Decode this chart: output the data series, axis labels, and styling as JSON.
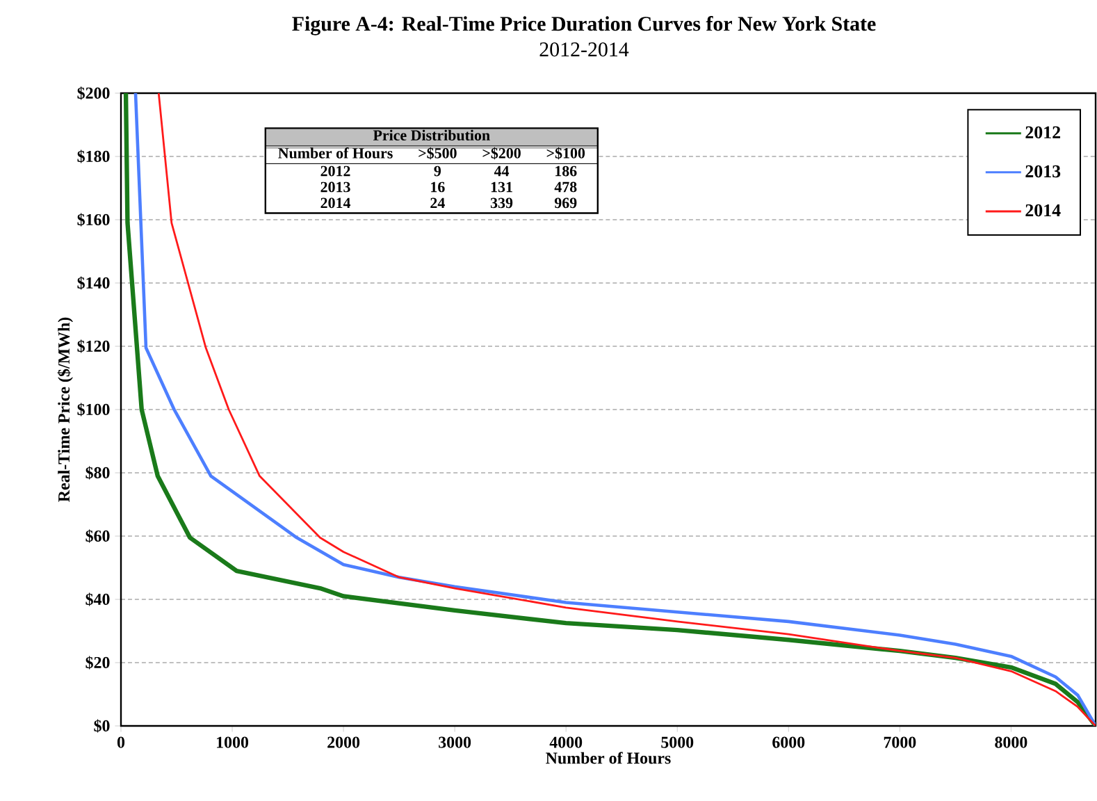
{
  "chart_data": {
    "type": "line",
    "title": "Figure A-4: Real-Time Price Duration Curves for New York State",
    "subtitle": "2012-2014",
    "xlabel": "Number of Hours",
    "ylabel": "Real-Time Price ($/MWh)",
    "xlim": [
      0,
      8760
    ],
    "ylim": [
      0,
      200
    ],
    "xticks": [
      0,
      1000,
      2000,
      3000,
      4000,
      5000,
      6000,
      7000,
      8000
    ],
    "yticks": [
      {
        "value": 0,
        "label": "$0"
      },
      {
        "value": 20,
        "label": "$20"
      },
      {
        "value": 40,
        "label": "$40"
      },
      {
        "value": 60,
        "label": "$60"
      },
      {
        "value": 80,
        "label": "$80"
      },
      {
        "value": 100,
        "label": "$100"
      },
      {
        "value": 120,
        "label": "$120"
      },
      {
        "value": 140,
        "label": "$140"
      },
      {
        "value": 160,
        "label": "$160"
      },
      {
        "value": 180,
        "label": "$180"
      },
      {
        "value": 200,
        "label": "$200"
      }
    ],
    "grid": "y",
    "legend": "top right",
    "marker": "none",
    "line_style": "solid",
    "annotations": [
      "Price Distribution",
      "Number of Hours",
      ">$500",
      ">$200",
      ">$100",
      "2012",
      "9",
      "44",
      "186",
      "2013",
      "16",
      "131",
      "478",
      "2014",
      "24",
      "339",
      "969"
    ],
    "series": [
      {
        "name": "2012",
        "color": "#1a7a1a",
        "x": [
          44,
          59,
          186,
          330,
          620,
          1040,
          1790,
          2000,
          3000,
          4000,
          5000,
          6000,
          7000,
          7500,
          8000,
          8400,
          8600,
          8760
        ],
        "values": [
          200,
          159,
          100,
          79,
          59.5,
          49,
          43.5,
          41,
          36.5,
          32.5,
          30.3,
          27.2,
          23.7,
          21.5,
          18.5,
          13.3,
          7.5,
          0
        ]
      },
      {
        "name": "2013",
        "color": "#4d7fff",
        "x": [
          131,
          225,
          478,
          808,
          1580,
          2000,
          2500,
          3000,
          4000,
          5000,
          6000,
          7000,
          7500,
          8000,
          8400,
          8600,
          8760
        ],
        "values": [
          200,
          119.5,
          100,
          79,
          59.5,
          51,
          47,
          44,
          39,
          36,
          33,
          28.7,
          25.8,
          22,
          15.5,
          9.7,
          0
        ]
      },
      {
        "name": "2014",
        "color": "#ff1a1a",
        "x": [
          339,
          455,
          763,
          969,
          1246,
          1790,
          2000,
          2500,
          3000,
          4000,
          5000,
          6000,
          7000,
          7500,
          8000,
          8400,
          8600,
          8760
        ],
        "values": [
          200,
          159,
          119.5,
          100,
          79,
          59.5,
          55,
          47,
          43.5,
          37.4,
          33,
          29,
          23.7,
          21.5,
          17.3,
          11,
          6,
          0
        ]
      }
    ]
  }
}
